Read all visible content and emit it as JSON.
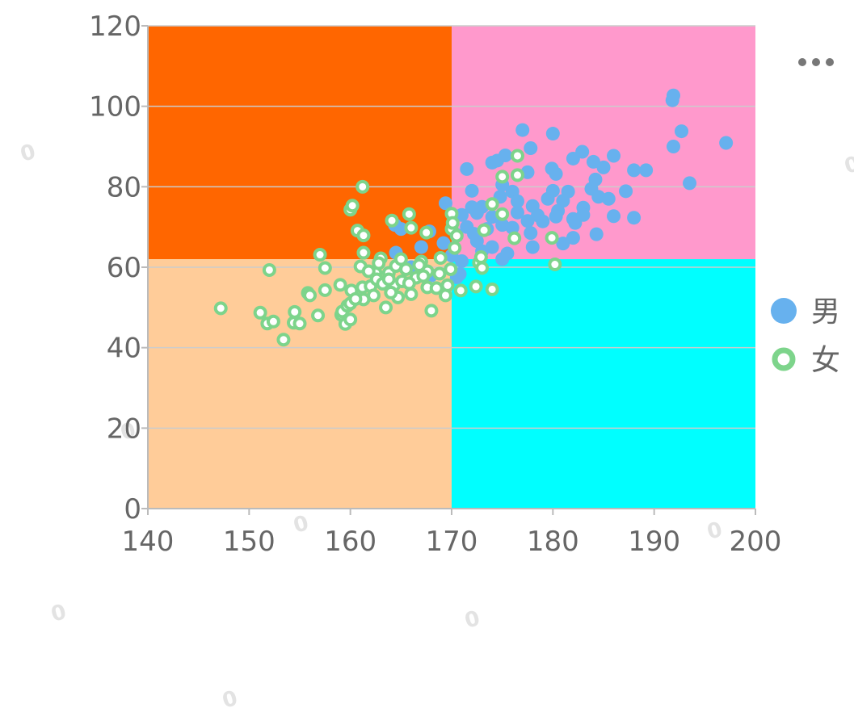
{
  "colors": {
    "quadrant_top_left": "#ff6600",
    "quadrant_top_right": "#ff99cc",
    "quadrant_bottom_left": "#ffcc99",
    "quadrant_bottom_right": "#00ffff",
    "male": "#67b1ee",
    "female": "#7dd48b",
    "axis_text": "#666666",
    "grid": "#cccccc"
  },
  "toolbar": {
    "more_icon": "more-dots-icon"
  },
  "watermark": "0",
  "chart_data": {
    "type": "scatter",
    "title": "",
    "xlabel": "",
    "ylabel": "",
    "xlim": [
      140,
      200
    ],
    "ylim": [
      0,
      120
    ],
    "x_ticks": [
      "140",
      "150",
      "160",
      "170",
      "180",
      "190",
      "200"
    ],
    "y_ticks": [
      "0",
      "20",
      "40",
      "60",
      "80",
      "100",
      "120"
    ],
    "quadrant_split": {
      "x": 170,
      "y": 62
    },
    "legend": {
      "position": "right"
    },
    "series": [
      {
        "name": "男",
        "marker": "filled-circle",
        "points": [
          [
            191.9,
            102.7
          ],
          [
            191.8,
            101.5
          ],
          [
            197.1,
            90.9
          ],
          [
            192.7,
            93.8
          ],
          [
            193.5,
            80.9
          ],
          [
            191.9,
            90.0
          ],
          [
            189.2,
            84.1
          ],
          [
            188.0,
            84.1
          ],
          [
            187.2,
            78.9
          ],
          [
            186.0,
            87.7
          ],
          [
            185.0,
            84.8
          ],
          [
            184.0,
            86.2
          ],
          [
            182.9,
            88.7
          ],
          [
            182.0,
            87.0
          ],
          [
            180.0,
            93.2
          ],
          [
            179.9,
            84.5
          ],
          [
            180.3,
            83.2
          ],
          [
            177.8,
            89.6
          ],
          [
            177.0,
            94.1
          ],
          [
            177.5,
            83.6
          ],
          [
            175.3,
            87.8
          ],
          [
            174.0,
            86.0
          ],
          [
            171.5,
            84.4
          ],
          [
            174.5,
            86.5
          ],
          [
            172.0,
            79.0
          ],
          [
            176.0,
            78.8
          ],
          [
            175.0,
            80.5
          ],
          [
            178.0,
            75.2
          ],
          [
            181.5,
            78.8
          ],
          [
            183.8,
            79.5
          ],
          [
            184.2,
            81.8
          ],
          [
            184.5,
            77.5
          ],
          [
            183.0,
            74.8
          ],
          [
            182.0,
            72.0
          ],
          [
            180.5,
            74.0
          ],
          [
            181.0,
            76.5
          ],
          [
            179.5,
            77.0
          ],
          [
            178.5,
            72.9
          ],
          [
            177.5,
            71.5
          ],
          [
            176.5,
            73.6
          ],
          [
            175.0,
            70.5
          ],
          [
            174.0,
            72.5
          ],
          [
            173.0,
            75.0
          ],
          [
            172.5,
            73.5
          ],
          [
            171.5,
            70.0
          ],
          [
            170.5,
            68.0
          ],
          [
            171.0,
            73.0
          ],
          [
            172.0,
            74.9
          ],
          [
            173.5,
            69.5
          ],
          [
            176.0,
            69.8
          ],
          [
            177.8,
            68.5
          ],
          [
            179.0,
            71.4
          ],
          [
            180.3,
            72.6
          ],
          [
            182.2,
            71.0
          ],
          [
            186.0,
            72.7
          ],
          [
            188.0,
            72.3
          ],
          [
            184.3,
            68.2
          ],
          [
            182.0,
            67.3
          ],
          [
            181.0,
            65.9
          ],
          [
            175.5,
            63.4
          ],
          [
            175.0,
            62.0
          ],
          [
            174.0,
            65.0
          ],
          [
            172.5,
            66.5
          ],
          [
            171.0,
            61.5
          ],
          [
            170.0,
            62.9
          ],
          [
            169.2,
            66.0
          ],
          [
            167.0,
            65.0
          ],
          [
            167.8,
            68.9
          ],
          [
            165.0,
            69.5
          ],
          [
            164.4,
            70.5
          ],
          [
            169.4,
            75.9
          ],
          [
            170.5,
            57.5
          ],
          [
            164.5,
            63.6
          ],
          [
            168.0,
            58.0
          ],
          [
            183.0,
            73.0
          ],
          [
            178.0,
            65.0
          ],
          [
            176.5,
            76.4
          ],
          [
            172.2,
            68.3
          ],
          [
            170.8,
            58.3
          ],
          [
            166.0,
            60.0
          ],
          [
            173.0,
            64.0
          ],
          [
            185.5,
            77.0
          ],
          [
            180.0,
            79.0
          ],
          [
            174.8,
            77.5
          ]
        ]
      },
      {
        "name": "女",
        "marker": "hollow-circle",
        "points": [
          [
            147.2,
            49.8
          ],
          [
            151.1,
            48.7
          ],
          [
            152.0,
            59.3
          ],
          [
            151.8,
            46.0
          ],
          [
            152.4,
            46.5
          ],
          [
            153.4,
            42.0
          ],
          [
            154.4,
            46.2
          ],
          [
            154.5,
            48.9
          ],
          [
            155.0,
            46.0
          ],
          [
            155.8,
            53.6
          ],
          [
            156.0,
            53.0
          ],
          [
            156.8,
            48.0
          ],
          [
            157.0,
            63.1
          ],
          [
            157.5,
            59.8
          ],
          [
            157.5,
            54.3
          ],
          [
            159.0,
            55.6
          ],
          [
            159.1,
            48.2
          ],
          [
            159.2,
            49.0
          ],
          [
            159.5,
            45.9
          ],
          [
            159.7,
            50.4
          ],
          [
            160.0,
            47.0
          ],
          [
            160.0,
            51.0
          ],
          [
            160.1,
            54.2
          ],
          [
            160.0,
            74.3
          ],
          [
            160.2,
            75.3
          ],
          [
            160.7,
            69.1
          ],
          [
            161.2,
            80.0
          ],
          [
            161.3,
            67.9
          ],
          [
            161.3,
            63.6
          ],
          [
            161.0,
            60.2
          ],
          [
            161.2,
            55.0
          ],
          [
            161.3,
            52.0
          ],
          [
            162.0,
            55.3
          ],
          [
            162.3,
            53.0
          ],
          [
            162.5,
            58.5
          ],
          [
            162.6,
            57.0
          ],
          [
            163.0,
            62.2
          ],
          [
            163.2,
            55.9
          ],
          [
            163.5,
            50.0
          ],
          [
            163.8,
            58.6
          ],
          [
            164.1,
            71.6
          ],
          [
            164.3,
            55.5
          ],
          [
            164.5,
            60.3
          ],
          [
            164.7,
            52.5
          ],
          [
            165.0,
            62.0
          ],
          [
            165.1,
            56.5
          ],
          [
            165.5,
            59.5
          ],
          [
            165.8,
            73.2
          ],
          [
            166.0,
            69.8
          ],
          [
            166.0,
            53.3
          ],
          [
            166.5,
            57.4
          ],
          [
            167.0,
            61.4
          ],
          [
            167.5,
            68.6
          ],
          [
            167.6,
            59.0
          ],
          [
            167.6,
            55.0
          ],
          [
            168.0,
            49.2
          ],
          [
            168.5,
            54.8
          ],
          [
            168.8,
            58.4
          ],
          [
            168.9,
            62.3
          ],
          [
            169.4,
            53.0
          ],
          [
            169.6,
            55.5
          ],
          [
            169.9,
            59.5
          ],
          [
            170.0,
            69.5
          ],
          [
            170.0,
            73.3
          ],
          [
            170.1,
            71.0
          ],
          [
            170.3,
            64.8
          ],
          [
            170.5,
            67.8
          ],
          [
            170.9,
            54.2
          ],
          [
            172.4,
            55.2
          ],
          [
            172.7,
            61.1
          ],
          [
            172.9,
            62.5
          ],
          [
            173.0,
            59.8
          ],
          [
            173.2,
            69.2
          ],
          [
            174.0,
            54.5
          ],
          [
            174.0,
            75.7
          ],
          [
            175.0,
            73.2
          ],
          [
            175.0,
            82.5
          ],
          [
            176.2,
            67.2
          ],
          [
            176.5,
            87.7
          ],
          [
            176.5,
            82.9
          ],
          [
            179.9,
            67.3
          ],
          [
            180.2,
            60.7
          ],
          [
            163.8,
            57.0
          ],
          [
            165.8,
            56.0
          ],
          [
            161.8,
            59.0
          ],
          [
            167.2,
            57.8
          ],
          [
            160.5,
            52.1
          ],
          [
            166.8,
            60.5
          ],
          [
            164.0,
            53.7
          ],
          [
            162.8,
            61.0
          ]
        ]
      }
    ]
  }
}
